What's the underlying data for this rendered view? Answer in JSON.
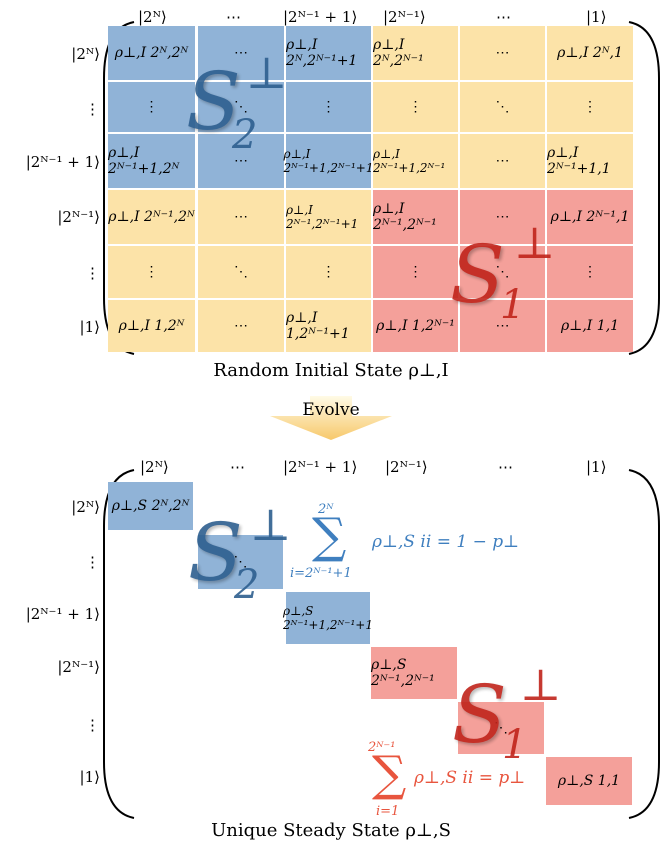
{
  "top": {
    "col_labels": [
      "|2ᴺ⟩",
      "⋯",
      "|2ᴺ⁻¹ + 1⟩",
      "|2ᴺ⁻¹⟩",
      "⋯",
      "|1⟩"
    ],
    "row_labels": [
      "|2ᴺ⟩",
      "⋮",
      "|2ᴺ⁻¹ + 1⟩",
      "|2ᴺ⁻¹⟩",
      "⋮",
      "|1⟩"
    ],
    "cells": [
      [
        "ρ⊥,I 2ᴺ,2ᴺ",
        "⋯",
        "ρ⊥,I 2ᴺ,2ᴺ⁻¹+1",
        "ρ⊥,I 2ᴺ,2ᴺ⁻¹",
        "⋯",
        "ρ⊥,I 2ᴺ,1"
      ],
      [
        "⋮",
        "⋱",
        "⋮",
        "⋮",
        "⋱",
        "⋮"
      ],
      [
        "ρ⊥,I 2ᴺ⁻¹+1,2ᴺ",
        "⋯",
        "ρ⊥,I 2ᴺ⁻¹+1,2ᴺ⁻¹+1",
        "ρ⊥,I 2ᴺ⁻¹+1,2ᴺ⁻¹",
        "⋯",
        "ρ⊥,I 2ᴺ⁻¹+1,1"
      ],
      [
        "ρ⊥,I 2ᴺ⁻¹,2ᴺ",
        "⋯",
        "ρ⊥,I 2ᴺ⁻¹,2ᴺ⁻¹+1",
        "ρ⊥,I 2ᴺ⁻¹,2ᴺ⁻¹",
        "⋯",
        "ρ⊥,I 2ᴺ⁻¹,1"
      ],
      [
        "⋮",
        "⋱",
        "⋮",
        "⋮",
        "⋱",
        "⋮"
      ],
      [
        "ρ⊥,I 1,2ᴺ",
        "⋯",
        "ρ⊥,I 1,2ᴺ⁻¹+1",
        "ρ⊥,I 1,2ᴺ⁻¹",
        "⋯",
        "ρ⊥,I 1,1"
      ]
    ],
    "caption": "Random Initial State ρ⊥,I",
    "S2_label": "S⊥ 2",
    "S1_label": "S⊥ 1"
  },
  "arrow": {
    "label": "Evolve"
  },
  "bottom": {
    "col_labels": [
      "|2ᴺ⟩",
      "⋯",
      "|2ᴺ⁻¹ + 1⟩",
      "|2ᴺ⁻¹⟩",
      "⋯",
      "|1⟩"
    ],
    "row_labels": [
      "|2ᴺ⟩",
      "⋮",
      "|2ᴺ⁻¹ + 1⟩",
      "|2ᴺ⁻¹⟩",
      "⋮",
      "|1⟩"
    ],
    "diag_cells": [
      "ρ⊥,S 2ᴺ,2ᴺ",
      "⋱",
      "ρ⊥,S 2ᴺ⁻¹+1,2ᴺ⁻¹+1",
      "ρ⊥,S 2ᴺ⁻¹,2ᴺ⁻¹",
      "⋱",
      "ρ⊥,S 1,1"
    ],
    "sum_blue": {
      "upper": "2ᴺ",
      "lower": "i=2ᴺ⁻¹+1",
      "expr": "ρ⊥,S ii = 1 − p⊥"
    },
    "sum_red": {
      "upper": "2ᴺ⁻¹",
      "lower": "i=1",
      "expr": "ρ⊥,S ii = p⊥"
    },
    "caption": "Unique Steady State ρ⊥,S",
    "S2_label": "S⊥ 2",
    "S1_label": "S⊥ 1"
  },
  "colors": {
    "blue": "#90b3d7",
    "yellow": "#fce3a8",
    "red": "#f4a09a",
    "blue_text": "#3f7fbf",
    "red_text": "#e8553e",
    "arrow_top": "#fffbe6",
    "arrow_bottom": "#f7c86a"
  }
}
